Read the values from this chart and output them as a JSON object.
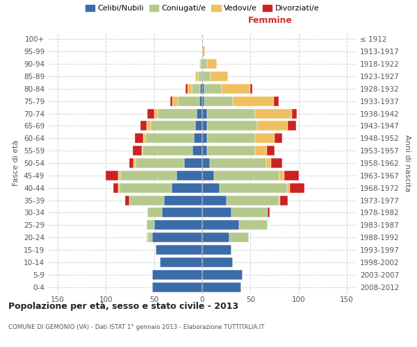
{
  "age_groups": [
    "0-4",
    "5-9",
    "10-14",
    "15-19",
    "20-24",
    "25-29",
    "30-34",
    "35-39",
    "40-44",
    "45-49",
    "50-54",
    "55-59",
    "60-64",
    "65-69",
    "70-74",
    "75-79",
    "80-84",
    "85-89",
    "90-94",
    "95-99",
    "100+"
  ],
  "birth_years": [
    "2008-2012",
    "2003-2007",
    "1998-2002",
    "1993-1997",
    "1988-1992",
    "1983-1987",
    "1978-1982",
    "1973-1977",
    "1968-1972",
    "1963-1967",
    "1958-1962",
    "1953-1957",
    "1948-1952",
    "1943-1947",
    "1938-1942",
    "1933-1937",
    "1928-1932",
    "1923-1927",
    "1918-1922",
    "1913-1917",
    "≤ 1912"
  ],
  "males": {
    "celibi": [
      52,
      52,
      44,
      48,
      52,
      50,
      42,
      40,
      32,
      27,
      19,
      10,
      9,
      7,
      6,
      3,
      2,
      0,
      0,
      0,
      0
    ],
    "coniugati": [
      0,
      0,
      0,
      0,
      4,
      8,
      15,
      36,
      54,
      58,
      50,
      52,
      50,
      46,
      40,
      22,
      9,
      4,
      2,
      0,
      0
    ],
    "vedovi": [
      0,
      0,
      0,
      0,
      2,
      0,
      0,
      0,
      1,
      2,
      2,
      1,
      2,
      5,
      4,
      6,
      4,
      3,
      1,
      0,
      0
    ],
    "divorziati": [
      0,
      0,
      0,
      0,
      0,
      0,
      0,
      4,
      5,
      13,
      5,
      9,
      9,
      6,
      7,
      2,
      2,
      0,
      0,
      0,
      0
    ]
  },
  "females": {
    "nubili": [
      40,
      42,
      32,
      30,
      28,
      38,
      30,
      25,
      18,
      12,
      8,
      5,
      5,
      5,
      5,
      2,
      2,
      1,
      0,
      0,
      0
    ],
    "coniugate": [
      0,
      0,
      0,
      0,
      20,
      30,
      38,
      54,
      70,
      68,
      58,
      50,
      50,
      52,
      50,
      30,
      18,
      8,
      5,
      1,
      0
    ],
    "vedove": [
      0,
      0,
      0,
      0,
      0,
      0,
      0,
      2,
      3,
      5,
      5,
      12,
      20,
      32,
      38,
      42,
      30,
      18,
      10,
      2,
      0
    ],
    "divorziate": [
      0,
      0,
      0,
      0,
      0,
      0,
      2,
      8,
      15,
      15,
      12,
      8,
      8,
      8,
      5,
      5,
      2,
      0,
      0,
      0,
      0
    ]
  },
  "colors": {
    "celibi": "#3c6ca8",
    "coniugati": "#b5c98e",
    "vedovi": "#f0c060",
    "divorziati": "#cc2222"
  },
  "xlim": 160,
  "title": "Popolazione per età, sesso e stato civile - 2013",
  "subtitle": "COMUNE DI GEMONIO (VA) - Dati ISTAT 1° gennaio 2013 - Elaborazione TUTTITALIA.IT",
  "xlabel_right": "Femmine",
  "ylabel_left": "Fasce di età",
  "ylabel_right": "Anni di nascita",
  "legend_labels": [
    "Celibi/Nubili",
    "Coniugati/e",
    "Vedovi/e",
    "Divorziati/e"
  ],
  "bg_color": "#ffffff",
  "grid_color": "#cccccc"
}
